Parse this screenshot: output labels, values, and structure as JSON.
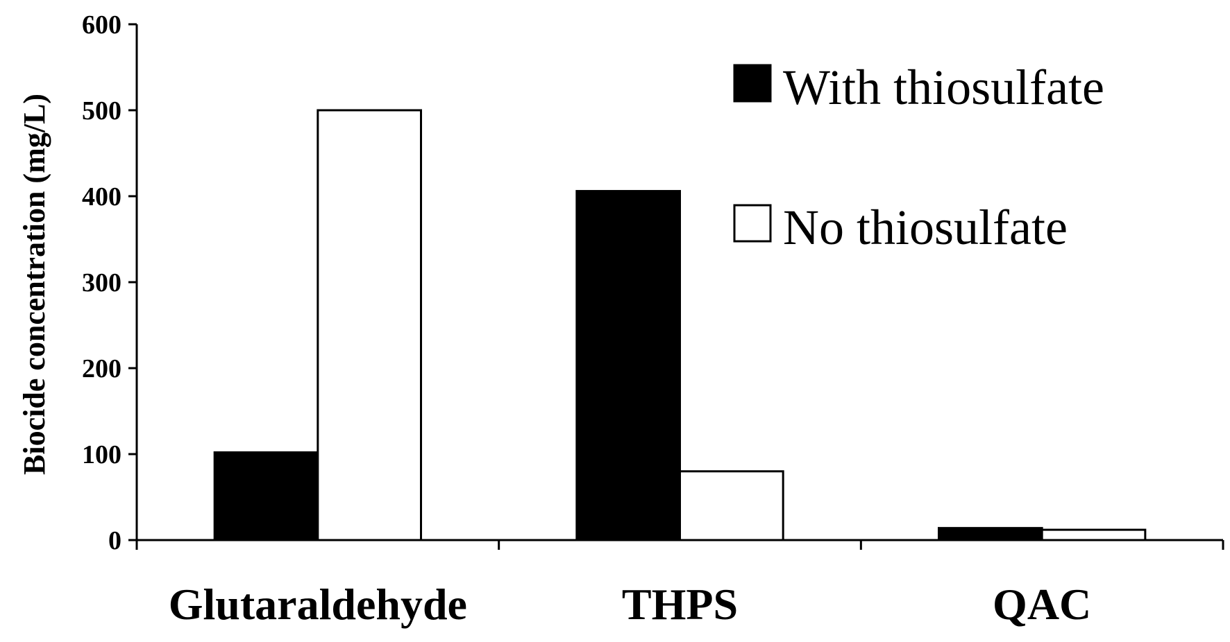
{
  "chart_data": {
    "type": "bar",
    "title": "",
    "xlabel": "",
    "ylabel": "Biocide concentration (mg/L)",
    "ylim": [
      0,
      600
    ],
    "yticks": [
      "0",
      "100",
      "200",
      "300",
      "400",
      "500",
      "600"
    ],
    "categories": [
      "Glutaraldehyde",
      "THPS",
      "QAC"
    ],
    "series": [
      {
        "name": "With thiosulfate",
        "values": [
          102,
          406,
          14
        ],
        "color": "#000000"
      },
      {
        "name": "No thiosulfate",
        "values": [
          500,
          80,
          12
        ],
        "color": "#ffffff"
      }
    ],
    "legend_position": "top-right",
    "grid": false
  }
}
